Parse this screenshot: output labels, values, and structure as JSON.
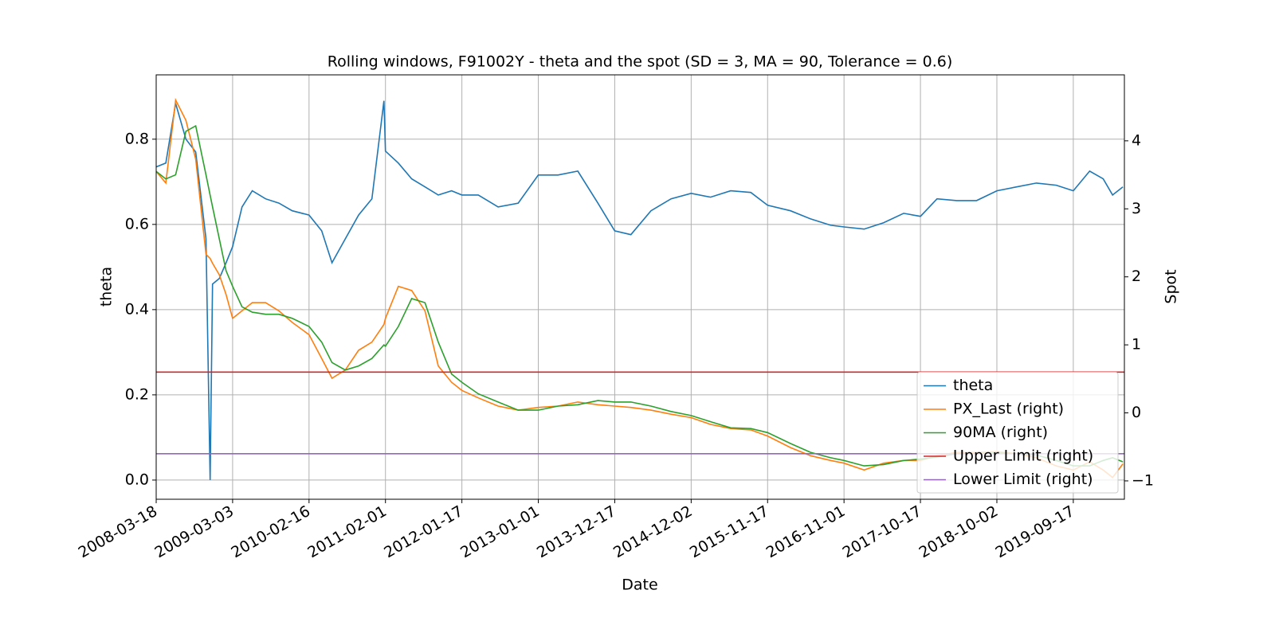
{
  "chart_data": {
    "type": "line",
    "title": "Rolling windows, F91002Y - theta and the spot (SD = 3, MA = 90, Tolerance  = 0.6)",
    "x_label": "Date",
    "y_label": "theta",
    "y2_label": "Spot",
    "x": [
      "2008-03-18",
      "2008-05-01",
      "2008-06-15",
      "2008-08-01",
      "2008-09-15",
      "2008-11-01",
      "2008-11-20",
      "2008-12-01",
      "2009-01-01",
      "2009-02-01",
      "2009-03-03",
      "2009-04-15",
      "2009-06-01",
      "2009-08-01",
      "2009-10-01",
      "2009-12-01",
      "2010-02-16",
      "2010-04-15",
      "2010-06-01",
      "2010-08-01",
      "2010-10-01",
      "2010-12-01",
      "2011-01-25",
      "2011-02-01",
      "2011-04-01",
      "2011-06-01",
      "2011-08-01",
      "2011-10-01",
      "2011-12-01",
      "2012-01-17",
      "2012-04-01",
      "2012-07-01",
      "2012-10-01",
      "2013-01-01",
      "2013-04-01",
      "2013-07-01",
      "2013-10-01",
      "2013-12-17",
      "2014-03-01",
      "2014-06-01",
      "2014-09-01",
      "2014-12-02",
      "2015-03-01",
      "2015-06-01",
      "2015-09-01",
      "2015-11-17",
      "2016-03-01",
      "2016-06-01",
      "2016-09-01",
      "2016-11-01",
      "2017-02-01",
      "2017-05-01",
      "2017-08-01",
      "2017-10-17",
      "2018-01-01",
      "2018-04-01",
      "2018-07-01",
      "2018-10-02",
      "2019-01-01",
      "2019-04-01",
      "2019-07-01",
      "2019-09-17",
      "2019-12-01",
      "2020-02-01",
      "2020-03-15",
      "2020-05-01"
    ],
    "series": [
      {
        "name": "theta",
        "color": "#1f77b4",
        "axis": "y",
        "values": [
          0.735,
          0.744,
          0.884,
          0.8,
          0.77,
          0.566,
          0.0,
          0.46,
          0.473,
          0.51,
          0.548,
          0.641,
          0.679,
          0.66,
          0.65,
          0.632,
          0.622,
          0.585,
          0.51,
          0.566,
          0.622,
          0.66,
          0.89,
          0.772,
          0.744,
          0.707,
          0.688,
          0.669,
          0.679,
          0.669,
          0.669,
          0.641,
          0.65,
          0.716,
          0.716,
          0.725,
          0.65,
          0.585,
          0.576,
          0.632,
          0.66,
          0.673,
          0.664,
          0.679,
          0.675,
          0.645,
          0.632,
          0.613,
          0.598,
          0.594,
          0.589,
          0.604,
          0.626,
          0.619,
          0.66,
          0.656,
          0.656,
          0.679,
          0.688,
          0.697,
          0.692,
          0.679,
          0.725,
          0.707,
          0.669,
          0.688
        ]
      },
      {
        "name": "PX_Last (right)",
        "color": "#ff7f0e",
        "axis": "y2",
        "values": [
          3.55,
          3.38,
          4.6,
          4.3,
          3.73,
          2.33,
          2.27,
          2.2,
          2.03,
          1.74,
          1.39,
          1.5,
          1.62,
          1.62,
          1.5,
          1.33,
          1.15,
          0.8,
          0.51,
          0.63,
          0.92,
          1.04,
          1.3,
          1.39,
          1.86,
          1.8,
          1.5,
          0.69,
          0.45,
          0.33,
          0.22,
          0.1,
          0.04,
          0.08,
          0.1,
          0.16,
          0.12,
          0.1,
          0.08,
          0.04,
          -0.02,
          -0.07,
          -0.17,
          -0.23,
          -0.25,
          -0.34,
          -0.51,
          -0.63,
          -0.7,
          -0.74,
          -0.84,
          -0.74,
          -0.7,
          -0.7,
          -0.63,
          -0.58,
          -0.58,
          -0.57,
          -0.6,
          -0.66,
          -0.78,
          -0.84,
          -0.72,
          -0.84,
          -0.95,
          -0.75
        ]
      },
      {
        "name": "90MA (right)",
        "color": "#2ca02c",
        "axis": "y2",
        "values": [
          3.55,
          3.44,
          3.5,
          4.14,
          4.22,
          3.5,
          3.2,
          3.03,
          2.56,
          2.09,
          1.86,
          1.56,
          1.48,
          1.45,
          1.45,
          1.39,
          1.27,
          1.04,
          0.74,
          0.63,
          0.69,
          0.8,
          1.0,
          0.98,
          1.27,
          1.68,
          1.62,
          1.04,
          0.57,
          0.45,
          0.28,
          0.16,
          0.04,
          0.04,
          0.1,
          0.12,
          0.18,
          0.16,
          0.16,
          0.1,
          0.02,
          -0.04,
          -0.13,
          -0.22,
          -0.23,
          -0.29,
          -0.45,
          -0.58,
          -0.66,
          -0.7,
          -0.78,
          -0.76,
          -0.7,
          -0.68,
          -0.65,
          -0.6,
          -0.6,
          -0.59,
          -0.6,
          -0.62,
          -0.7,
          -0.78,
          -0.78,
          -0.7,
          -0.66,
          -0.72
        ]
      }
    ],
    "hlines": [
      {
        "name": "Upper Limit (right)",
        "color": "#d62728",
        "axis": "y2",
        "value": 0.6
      },
      {
        "name": "Lower Limit (right)",
        "color": "#9467bd",
        "axis": "y2",
        "value": -0.6
      }
    ],
    "xlim": [
      "2008-03-18",
      "2020-05-08"
    ],
    "xticks": [
      "2008-03-18",
      "2009-03-03",
      "2010-02-16",
      "2011-02-01",
      "2012-01-17",
      "2013-01-01",
      "2013-12-17",
      "2014-12-02",
      "2015-11-17",
      "2016-11-01",
      "2017-10-17",
      "2018-10-02",
      "2019-09-17"
    ],
    "ylim": [
      -0.045,
      0.951
    ],
    "yticks": [
      {
        "value": 0,
        "label": "0.0"
      },
      0.2,
      0.4,
      0.6,
      0.8
    ],
    "y2lim": [
      -1.27,
      4.97
    ],
    "y2ticks": [
      {
        "value": -1,
        "label": "−1"
      },
      0,
      1,
      2,
      3,
      4
    ],
    "grid": true,
    "legend": "lower right"
  }
}
